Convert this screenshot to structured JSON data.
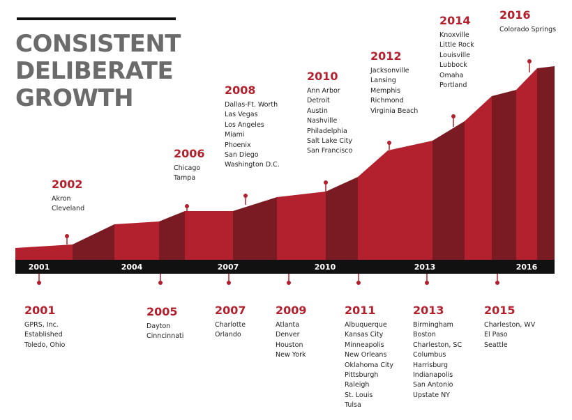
{
  "title": {
    "lines": [
      "CONSISTENT",
      "DELIBERATE",
      "GROWTH"
    ]
  },
  "axis": {
    "years": [
      "2001",
      "2004",
      "2007",
      "2010",
      "2013",
      "2016"
    ]
  },
  "colors": {
    "accent": "#b31f2c",
    "band_light": "#b3212e",
    "band_dark": "#7a1a22",
    "axis_bar": "#111111",
    "title_gray": "#6b6b6b"
  },
  "milestones_above": [
    {
      "year": "2002",
      "cities": [
        "Akron",
        "Cleveland"
      ]
    },
    {
      "year": "2006",
      "cities": [
        "Chicago",
        "Tampa"
      ]
    },
    {
      "year": "2008",
      "cities": [
        "Dallas-Ft. Worth",
        "Las Vegas",
        "Los Angeles",
        "Miami",
        "Phoenix",
        "San Diego",
        "Washington D.C."
      ]
    },
    {
      "year": "2010",
      "cities": [
        "Ann Arbor",
        "Detroit",
        "Austin",
        "Nashville",
        "Philadelphia",
        "Salt Lake City",
        "San Francisco"
      ]
    },
    {
      "year": "2012",
      "cities": [
        "Jacksonville",
        "Lansing",
        "Memphis",
        "Richmond",
        "Virginia Beach"
      ]
    },
    {
      "year": "2014",
      "cities": [
        "Knoxville",
        "Little Rock",
        "Louisville",
        "Lubbock",
        "Omaha",
        "Portland"
      ]
    },
    {
      "year": "2016",
      "cities": [
        "Colorado Springs"
      ]
    }
  ],
  "milestones_below": [
    {
      "year": "2001",
      "cities": [
        "GPRS, Inc.",
        "Established",
        "Toledo, Ohio"
      ]
    },
    {
      "year": "2005",
      "cities": [
        "Dayton",
        "Cinncinnati"
      ]
    },
    {
      "year": "2007",
      "cities": [
        "Charlotte",
        "Orlando"
      ]
    },
    {
      "year": "2009",
      "cities": [
        "Atlanta",
        "Denver",
        "Houston",
        "New York"
      ]
    },
    {
      "year": "2011",
      "cities": [
        "Albuquerque",
        "Kansas City",
        "Minneapolis",
        "New Orleans",
        "Oklahoma City",
        "Pittsburgh",
        "Raleigh",
        "St. Louis",
        "Tulsa"
      ]
    },
    {
      "year": "2013",
      "cities": [
        "Birmingham",
        "Boston",
        "Charleston, SC",
        "Columbus",
        "Harrisburg",
        "Indianapolis",
        "San Antonio",
        "Upstate NY"
      ]
    },
    {
      "year": "2015",
      "cities": [
        "Charleston, WV",
        "El Paso",
        "Seattle"
      ]
    }
  ]
}
